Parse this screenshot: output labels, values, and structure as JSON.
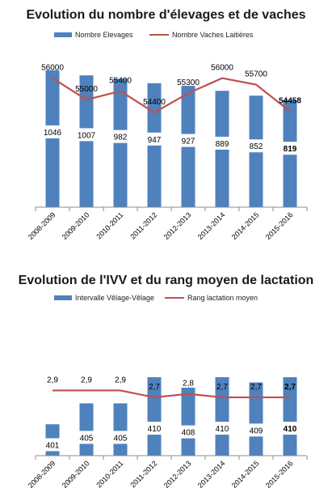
{
  "colors": {
    "bar": "#4f81bd",
    "line": "#c0504d",
    "label_bg": "#ffffff"
  },
  "chart_data": [
    {
      "type": "bar",
      "title": "Evolution du nombre d'élevages et de vaches",
      "categories": [
        "2008-2009",
        "2009-2010",
        "2010-2011",
        "2011-2012",
        "2012-2013",
        "2013-2014",
        "2014-2015",
        "2015-2016"
      ],
      "series": [
        {
          "name": "Nombre Elevages",
          "kind": "bar",
          "values": [
            1046,
            1007,
            982,
            947,
            927,
            889,
            852,
            819
          ],
          "labels": [
            "1046",
            "1007",
            "982",
            "947",
            "927",
            "889",
            "852",
            "819"
          ],
          "bar_ylim": [
            0,
            1150
          ]
        },
        {
          "name": "Nombre Vaches Laitières",
          "kind": "line",
          "values": [
            56000,
            55000,
            55400,
            54400,
            55300,
            56000,
            55700,
            54458
          ],
          "labels": [
            "56000",
            "55000",
            "55400",
            "54400",
            "55300",
            "56000",
            "55700",
            "54458"
          ],
          "line_ylim": [
            50000,
            57000
          ]
        }
      ],
      "last_label_bold": true,
      "grid": false,
      "legend_position": "top"
    },
    {
      "type": "bar",
      "title": "Evolution de l'IVV et du rang moyen de lactation",
      "categories": [
        "2008-2009",
        "2009-2010",
        "2010-2011",
        "2011-2012",
        "2012-2013",
        "2013-2014",
        "2014-2015",
        "2015-2016"
      ],
      "series": [
        {
          "name": "Intervalle Vêlage-Vêlage",
          "kind": "bar",
          "values": [
            401,
            405,
            405,
            410,
            408,
            410,
            409,
            410
          ],
          "labels": [
            "401",
            "405",
            "405",
            "410",
            "408",
            "410",
            "409",
            "410"
          ],
          "bar_ylim": [
            395,
            411.4
          ]
        },
        {
          "name": "Rang lactation moyen",
          "kind": "line",
          "values": [
            2.9,
            2.9,
            2.9,
            2.7,
            2.8,
            2.7,
            2.7,
            2.7
          ],
          "labels": [
            "2,9",
            "2,9",
            "2,9",
            "2,7",
            "2,8",
            "2,7",
            "2,7",
            "2,7"
          ],
          "line_ylim": [
            1,
            3.5
          ]
        }
      ],
      "last_label_bold": true,
      "grid": false,
      "legend_position": "top"
    }
  ]
}
